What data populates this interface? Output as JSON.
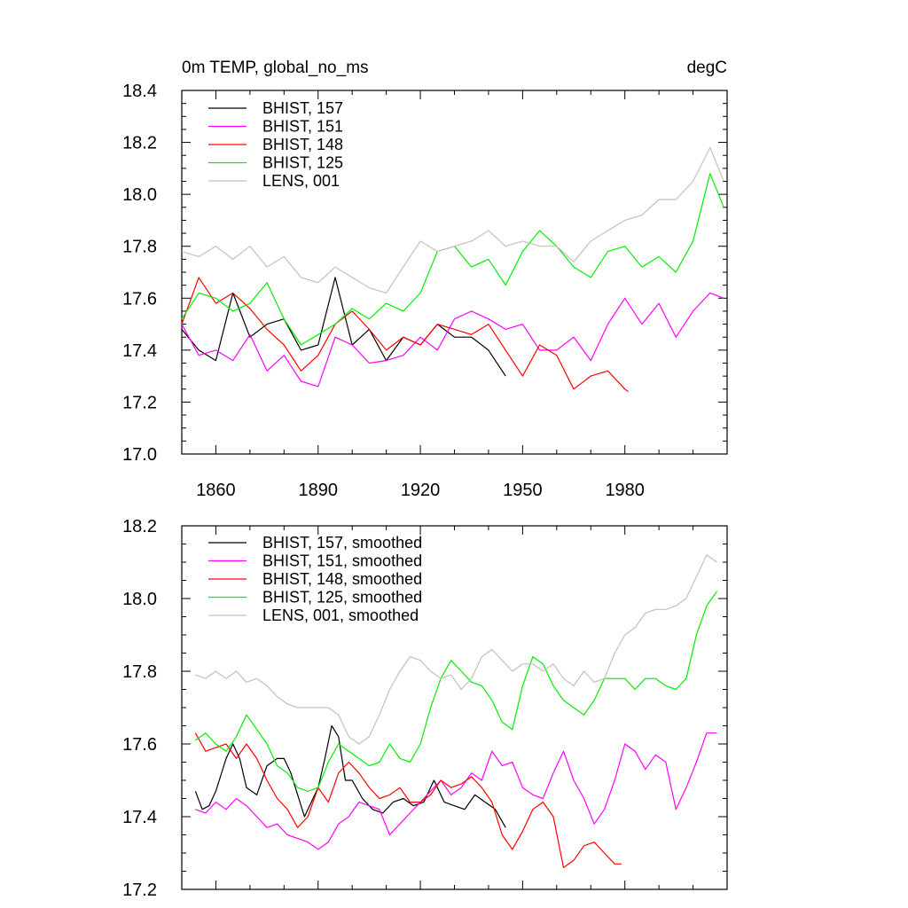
{
  "chart_data": [
    {
      "type": "line",
      "title": "0m TEMP, global_no_ms",
      "units": "degC",
      "xlim": [
        1850,
        2010
      ],
      "ylim": [
        17.0,
        18.4
      ],
      "xticks": [
        1860,
        1890,
        1920,
        1950,
        1980
      ],
      "yticks": [
        17.0,
        17.2,
        17.4,
        17.6,
        17.8,
        18.0,
        18.2,
        18.4
      ],
      "ytick_labels": [
        "17.0",
        "17.2",
        "17.4",
        "17.6",
        "17.8",
        "18.0",
        "18.2",
        "18.4"
      ],
      "legend_position": "top-left",
      "series": [
        {
          "name": "BHIST, 157",
          "color": "#000000",
          "x": [
            1850,
            1855,
            1860,
            1865,
            1870,
            1875,
            1880,
            1885,
            1890,
            1895,
            1900,
            1905,
            1910,
            1915,
            1920,
            1925,
            1930,
            1935,
            1940,
            1945
          ],
          "y": [
            17.48,
            17.4,
            17.36,
            17.62,
            17.45,
            17.5,
            17.52,
            17.4,
            17.42,
            17.68,
            17.42,
            17.48,
            17.36,
            17.45,
            17.42,
            17.5,
            17.45,
            17.45,
            17.4,
            17.3
          ]
        },
        {
          "name": "BHIST, 151",
          "color": "#ff00ff",
          "x": [
            1850,
            1855,
            1860,
            1865,
            1870,
            1875,
            1880,
            1885,
            1890,
            1895,
            1900,
            1905,
            1910,
            1915,
            1920,
            1925,
            1930,
            1935,
            1940,
            1945,
            1950,
            1955,
            1960,
            1965,
            1970,
            1975,
            1980,
            1985,
            1990,
            1995,
            2000,
            2005,
            2009
          ],
          "y": [
            17.5,
            17.38,
            17.4,
            17.36,
            17.46,
            17.32,
            17.38,
            17.28,
            17.26,
            17.45,
            17.42,
            17.35,
            17.36,
            17.38,
            17.45,
            17.4,
            17.52,
            17.55,
            17.52,
            17.48,
            17.5,
            17.4,
            17.4,
            17.45,
            17.36,
            17.5,
            17.6,
            17.5,
            17.58,
            17.45,
            17.55,
            17.62,
            17.6
          ]
        },
        {
          "name": "BHIST, 148",
          "color": "#ff0000",
          "x": [
            1850,
            1855,
            1860,
            1865,
            1870,
            1875,
            1880,
            1885,
            1890,
            1895,
            1900,
            1905,
            1910,
            1915,
            1920,
            1925,
            1930,
            1935,
            1940,
            1945,
            1950,
            1955,
            1960,
            1965,
            1970,
            1975,
            1980,
            1981
          ],
          "y": [
            17.5,
            17.68,
            17.58,
            17.62,
            17.56,
            17.48,
            17.42,
            17.32,
            17.38,
            17.5,
            17.55,
            17.48,
            17.4,
            17.45,
            17.42,
            17.5,
            17.48,
            17.46,
            17.5,
            17.4,
            17.3,
            17.42,
            17.38,
            17.25,
            17.3,
            17.32,
            17.25,
            17.24
          ]
        },
        {
          "name": "BHIST, 125",
          "color": "#00ee00",
          "x": [
            1850,
            1855,
            1860,
            1865,
            1870,
            1875,
            1880,
            1885,
            1890,
            1895,
            1900,
            1905,
            1910,
            1915,
            1920,
            1925,
            1930,
            1935,
            1940,
            1945,
            1950,
            1955,
            1960,
            1965,
            1970,
            1975,
            1980,
            1985,
            1990,
            1995,
            2000,
            2005,
            2009
          ],
          "y": [
            17.52,
            17.62,
            17.6,
            17.55,
            17.58,
            17.66,
            17.52,
            17.42,
            17.46,
            17.5,
            17.56,
            17.52,
            17.58,
            17.55,
            17.62,
            17.78,
            17.8,
            17.72,
            17.75,
            17.65,
            17.78,
            17.86,
            17.8,
            17.72,
            17.68,
            17.78,
            17.8,
            17.72,
            17.76,
            17.7,
            17.82,
            18.08,
            17.95
          ]
        },
        {
          "name": "LENS, 001",
          "color": "#c0c0c0",
          "x": [
            1850,
            1855,
            1860,
            1865,
            1870,
            1875,
            1880,
            1885,
            1890,
            1895,
            1900,
            1905,
            1910,
            1915,
            1920,
            1925,
            1930,
            1935,
            1940,
            1945,
            1950,
            1955,
            1960,
            1965,
            1970,
            1975,
            1980,
            1985,
            1990,
            1995,
            2000,
            2005,
            2009
          ],
          "y": [
            17.78,
            17.76,
            17.8,
            17.75,
            17.8,
            17.72,
            17.76,
            17.68,
            17.66,
            17.72,
            17.68,
            17.64,
            17.62,
            17.72,
            17.82,
            17.78,
            17.8,
            17.82,
            17.86,
            17.8,
            17.82,
            17.8,
            17.8,
            17.74,
            17.82,
            17.86,
            17.9,
            17.92,
            17.98,
            17.98,
            18.05,
            18.18,
            18.05
          ]
        }
      ]
    },
    {
      "type": "line",
      "xlim": [
        1850,
        2010
      ],
      "ylim": [
        17.2,
        18.2
      ],
      "xticks": [
        1860,
        1890,
        1920,
        1950,
        1980
      ],
      "yticks": [
        17.2,
        17.4,
        17.6,
        17.8,
        18.0,
        18.2
      ],
      "ytick_labels": [
        "17.2",
        "17.4",
        "17.6",
        "17.8",
        "18.0",
        "18.2"
      ],
      "legend_position": "top-left",
      "series": [
        {
          "name": "BHIST, 157, smoothed",
          "color": "#000000",
          "x": [
            1854,
            1856,
            1858,
            1860,
            1863,
            1865,
            1867,
            1869,
            1872,
            1875,
            1878,
            1880,
            1882,
            1884,
            1886,
            1888,
            1890,
            1892,
            1894,
            1896,
            1898,
            1900,
            1903,
            1906,
            1909,
            1912,
            1915,
            1918,
            1921,
            1924,
            1927,
            1930,
            1933,
            1936,
            1939,
            1942,
            1945
          ],
          "y": [
            17.47,
            17.42,
            17.43,
            17.47,
            17.56,
            17.6,
            17.56,
            17.48,
            17.46,
            17.54,
            17.56,
            17.56,
            17.52,
            17.46,
            17.4,
            17.44,
            17.48,
            17.56,
            17.65,
            17.62,
            17.5,
            17.5,
            17.45,
            17.42,
            17.41,
            17.44,
            17.45,
            17.43,
            17.44,
            17.5,
            17.44,
            17.43,
            17.42,
            17.46,
            17.44,
            17.42,
            17.37
          ]
        },
        {
          "name": "BHIST, 151, smoothed",
          "color": "#ff00ff",
          "x": [
            1854,
            1857,
            1860,
            1863,
            1866,
            1869,
            1872,
            1875,
            1878,
            1881,
            1884,
            1887,
            1890,
            1893,
            1896,
            1899,
            1902,
            1905,
            1908,
            1911,
            1914,
            1917,
            1920,
            1923,
            1926,
            1929,
            1932,
            1935,
            1938,
            1941,
            1944,
            1947,
            1950,
            1953,
            1956,
            1959,
            1962,
            1965,
            1968,
            1971,
            1974,
            1977,
            1980,
            1983,
            1986,
            1989,
            1992,
            1995,
            1998,
            2001,
            2004,
            2007
          ],
          "y": [
            17.42,
            17.41,
            17.44,
            17.42,
            17.45,
            17.43,
            17.4,
            17.37,
            17.38,
            17.35,
            17.34,
            17.33,
            17.31,
            17.33,
            17.38,
            17.4,
            17.44,
            17.43,
            17.42,
            17.35,
            17.38,
            17.41,
            17.44,
            17.47,
            17.5,
            17.46,
            17.48,
            17.52,
            17.5,
            17.58,
            17.54,
            17.55,
            17.48,
            17.46,
            17.45,
            17.52,
            17.58,
            17.5,
            17.45,
            17.38,
            17.42,
            17.5,
            17.6,
            17.58,
            17.53,
            17.57,
            17.55,
            17.42,
            17.48,
            17.55,
            17.63,
            17.63
          ]
        },
        {
          "name": "BHIST, 148, smoothed",
          "color": "#ff0000",
          "x": [
            1854,
            1857,
            1860,
            1863,
            1866,
            1869,
            1872,
            1875,
            1878,
            1881,
            1884,
            1887,
            1890,
            1893,
            1896,
            1899,
            1902,
            1905,
            1908,
            1911,
            1914,
            1917,
            1920,
            1923,
            1926,
            1929,
            1932,
            1935,
            1938,
            1941,
            1944,
            1947,
            1950,
            1953,
            1956,
            1959,
            1962,
            1965,
            1968,
            1971,
            1974,
            1977,
            1979
          ],
          "y": [
            17.63,
            17.58,
            17.59,
            17.6,
            17.56,
            17.6,
            17.56,
            17.5,
            17.45,
            17.42,
            17.37,
            17.4,
            17.48,
            17.44,
            17.52,
            17.55,
            17.52,
            17.48,
            17.45,
            17.46,
            17.48,
            17.44,
            17.44,
            17.46,
            17.5,
            17.48,
            17.49,
            17.51,
            17.48,
            17.44,
            17.35,
            17.31,
            17.36,
            17.42,
            17.44,
            17.4,
            17.26,
            17.28,
            17.32,
            17.33,
            17.3,
            17.27,
            17.27
          ]
        },
        {
          "name": "BHIST, 125, smoothed",
          "color": "#00ee00",
          "x": [
            1854,
            1857,
            1860,
            1863,
            1866,
            1869,
            1872,
            1875,
            1878,
            1881,
            1884,
            1887,
            1890,
            1893,
            1896,
            1899,
            1902,
            1905,
            1908,
            1911,
            1914,
            1917,
            1920,
            1923,
            1926,
            1929,
            1932,
            1935,
            1938,
            1941,
            1944,
            1947,
            1950,
            1953,
            1956,
            1959,
            1962,
            1965,
            1968,
            1971,
            1974,
            1977,
            1980,
            1983,
            1986,
            1989,
            1992,
            1995,
            1998,
            2001,
            2004,
            2007
          ],
          "y": [
            17.61,
            17.63,
            17.6,
            17.58,
            17.62,
            17.68,
            17.64,
            17.6,
            17.54,
            17.52,
            17.48,
            17.47,
            17.48,
            17.55,
            17.6,
            17.58,
            17.56,
            17.54,
            17.55,
            17.6,
            17.56,
            17.55,
            17.6,
            17.7,
            17.78,
            17.83,
            17.8,
            17.77,
            17.76,
            17.72,
            17.66,
            17.64,
            17.76,
            17.84,
            17.82,
            17.76,
            17.72,
            17.7,
            17.68,
            17.72,
            17.78,
            17.78,
            17.78,
            17.75,
            17.78,
            17.78,
            17.76,
            17.75,
            17.78,
            17.9,
            17.98,
            18.02
          ]
        },
        {
          "name": "LENS, 001, smoothed",
          "color": "#c0c0c0",
          "x": [
            1854,
            1857,
            1860,
            1863,
            1866,
            1869,
            1872,
            1875,
            1878,
            1881,
            1884,
            1887,
            1890,
            1893,
            1896,
            1899,
            1902,
            1905,
            1908,
            1911,
            1914,
            1917,
            1920,
            1923,
            1926,
            1929,
            1932,
            1935,
            1938,
            1941,
            1944,
            1947,
            1950,
            1953,
            1956,
            1959,
            1962,
            1965,
            1968,
            1971,
            1974,
            1977,
            1980,
            1983,
            1986,
            1989,
            1992,
            1995,
            1998,
            2001,
            2004,
            2007
          ],
          "y": [
            17.79,
            17.78,
            17.8,
            17.78,
            17.8,
            17.77,
            17.78,
            17.76,
            17.73,
            17.71,
            17.7,
            17.7,
            17.7,
            17.7,
            17.68,
            17.62,
            17.6,
            17.62,
            17.68,
            17.75,
            17.8,
            17.84,
            17.83,
            17.8,
            17.78,
            17.79,
            17.75,
            17.78,
            17.84,
            17.86,
            17.83,
            17.8,
            17.82,
            17.82,
            17.8,
            17.82,
            17.78,
            17.76,
            17.8,
            17.77,
            17.78,
            17.85,
            17.9,
            17.92,
            17.96,
            17.97,
            17.97,
            17.98,
            18.0,
            18.06,
            18.12,
            18.1
          ]
        }
      ]
    }
  ]
}
